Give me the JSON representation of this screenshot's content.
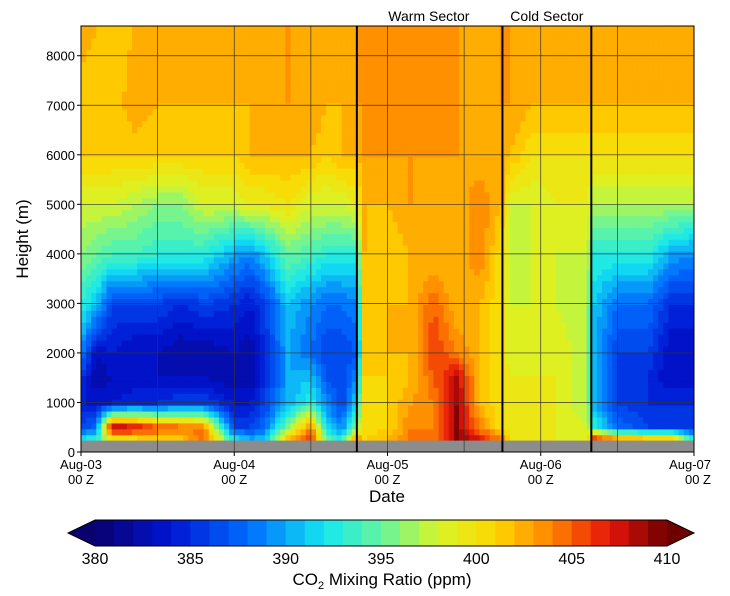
{
  "chart_data": {
    "type": "heatmap",
    "title": "",
    "xlabel": "Date",
    "ylabel": "Height (m)",
    "x_ticks": [
      {
        "date": "Aug-03",
        "time": "00 Z"
      },
      {
        "date": "Aug-04",
        "time": "00 Z"
      },
      {
        "date": "Aug-05",
        "time": "00 Z"
      },
      {
        "date": "Aug-06",
        "time": "00 Z"
      },
      {
        "date": "Aug-07",
        "time": "00 Z"
      }
    ],
    "xlim_days": [
      0,
      4
    ],
    "y_ticks": [
      0,
      1000,
      2000,
      3000,
      4000,
      5000,
      6000,
      7000,
      8000
    ],
    "ylim": [
      0,
      8600
    ],
    "ground_level_m": 230,
    "grid": true,
    "vertical_lines_day": [
      1.8,
      2.75,
      3.33
    ],
    "annotations": [
      {
        "text": "Warm Sector",
        "x_day": 2.27
      },
      {
        "text": "Cold Sector",
        "x_day": 3.04
      }
    ],
    "colorbar": {
      "label_main": "CO",
      "label_sub": "2",
      "label_rest": " Mixing Ratio (ppm)",
      "min": 380,
      "max": 410,
      "step": 1,
      "ticks": [
        380,
        385,
        390,
        395,
        400,
        405,
        410
      ]
    },
    "column_profiles": {
      "x_day": [
        0,
        0.1,
        0.2,
        0.35,
        0.5,
        0.65,
        0.8,
        1.0,
        1.1,
        1.2,
        1.35,
        1.5,
        1.6,
        1.7,
        1.8,
        1.85,
        2.0,
        2.15,
        2.3,
        2.45,
        2.6,
        2.75,
        2.8,
        2.95,
        3.1,
        3.3,
        3.35,
        3.5,
        3.7,
        3.85,
        4.0
      ],
      "height_levels_m": [
        230,
        500,
        1000,
        1500,
        2000,
        3000,
        4000,
        5000,
        6000,
        7000,
        8600
      ],
      "co2_ppm": [
        [
          393,
          386,
          384,
          385,
          389,
          393,
          396,
          398,
          401,
          401,
          403
        ],
        [
          394,
          388,
          384,
          382,
          383,
          391,
          395,
          398,
          401,
          401,
          402
        ],
        [
          398,
          409,
          384,
          383,
          384,
          386,
          394,
          398,
          401,
          401,
          401
        ],
        [
          399,
          408,
          385,
          383,
          383,
          386,
          394,
          397,
          401,
          403,
          402
        ],
        [
          400,
          406,
          385,
          383,
          383,
          386,
          393,
          396,
          401,
          402,
          402
        ],
        [
          401,
          405,
          386,
          383,
          382,
          385,
          393,
          396,
          401,
          402,
          402
        ],
        [
          405,
          404,
          386,
          383,
          382,
          386,
          393,
          398,
          401,
          402,
          402
        ],
        [
          393,
          386,
          384,
          382,
          383,
          385,
          390,
          398,
          401,
          402,
          402
        ],
        [
          391,
          386,
          384,
          382,
          382,
          384,
          389,
          399,
          402,
          402,
          402
        ],
        [
          391,
          388,
          386,
          385,
          385,
          386,
          391,
          399,
          402,
          402,
          402
        ],
        [
          403,
          396,
          390,
          390,
          390,
          391,
          395,
          400,
          402,
          403,
          403
        ],
        [
          407,
          404,
          393,
          391,
          388,
          389,
          394,
          398,
          402,
          403,
          402
        ],
        [
          396,
          392,
          389,
          387,
          386,
          388,
          393,
          398,
          401,
          402,
          402
        ],
        [
          393,
          389,
          386,
          386,
          386,
          388,
          393,
          398,
          402,
          402,
          403
        ],
        [
          406,
          396,
          392,
          389,
          387,
          389,
          393,
          399,
          402,
          403,
          403
        ],
        [
          401,
          400,
          400,
          401,
          401,
          401,
          402,
          402,
          403,
          403,
          403
        ],
        [
          402,
          401,
          401,
          401,
          402,
          402,
          401,
          402,
          403,
          403,
          403
        ],
        [
          404,
          404,
          403,
          402,
          402,
          402,
          402,
          403,
          403,
          403,
          403
        ],
        [
          404,
          404,
          404,
          405,
          406,
          405,
          402,
          402,
          403,
          403,
          403
        ],
        [
          409,
          409,
          409,
          408,
          404,
          402,
          402,
          402,
          403,
          403,
          403
        ],
        [
          408,
          404,
          402,
          402,
          402,
          402,
          404,
          404,
          402,
          402,
          403
        ],
        [
          404,
          400,
          400,
          400,
          400,
          400,
          400,
          402,
          402,
          403,
          403
        ],
        [
          400,
          400,
          399,
          399,
          398,
          398,
          397,
          398,
          402,
          403,
          403
        ],
        [
          399,
          399,
          399,
          399,
          398,
          398,
          398,
          398,
          400,
          402,
          403
        ],
        [
          399,
          399,
          399,
          399,
          399,
          398,
          398,
          399,
          400,
          402,
          403
        ],
        [
          398,
          398,
          397,
          397,
          397,
          397,
          398,
          399,
          400,
          402,
          403
        ],
        [
          409,
          393,
          390,
          390,
          390,
          391,
          393,
          397,
          400,
          402,
          403
        ],
        [
          406,
          388,
          386,
          386,
          386,
          388,
          393,
          397,
          400,
          402,
          403
        ],
        [
          405,
          386,
          385,
          385,
          386,
          388,
          393,
          397,
          400,
          402,
          403
        ],
        [
          404,
          386,
          385,
          383,
          383,
          385,
          390,
          397,
          400,
          402,
          403
        ],
        [
          393,
          386,
          385,
          383,
          383,
          385,
          389,
          397,
          400,
          402,
          403
        ]
      ]
    }
  }
}
